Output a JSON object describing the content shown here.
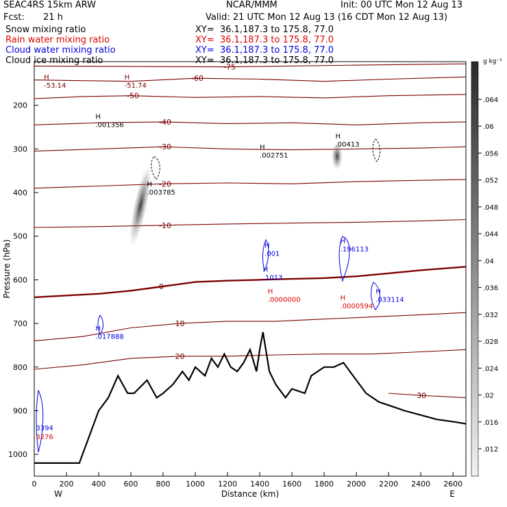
{
  "header": {
    "model": "SEAC4RS 15km ARW",
    "center": "NCAR/MMM",
    "init": "Init: 00 UTC Mon 12 Aug 13",
    "fcst_label": "Fcst:",
    "fcst_value": "21 h",
    "valid": "Valid: 21 UTC Mon 12 Aug 13 (16 CDT Mon 12 Aug 13)"
  },
  "fields": [
    {
      "name": "Snow mixing ratio",
      "xy": "XY=  36.1,187.3 to 175.8, 77.0",
      "color": "#000000"
    },
    {
      "name": "Rain water mixing ratio",
      "xy": "XY=  36.1,187.3 to 175.8, 77.0",
      "color": "#dd0000"
    },
    {
      "name": "Cloud water mixing ratio",
      "xy": "XY=  36.1,187.3 to 175.8, 77.0",
      "color": "#0000dd"
    },
    {
      "name": "Cloud ice mixing ratio",
      "xy": "XY=  36.1,187.3 to 175.8, 77.0",
      "color": "#000000"
    }
  ],
  "colorbar": {
    "unit": "g kg⁻¹",
    "ticks": [
      ".064",
      ".06",
      ".056",
      ".052",
      ".048",
      ".044",
      ".04",
      ".036",
      ".032",
      ".028",
      ".024",
      ".02",
      ".016",
      ".012"
    ]
  },
  "chart_data": {
    "type": "cross-section",
    "xlabel": "Distance (km)",
    "ylabel": "Pressure (hPa)",
    "x_ticks": [
      "0",
      "200",
      "400",
      "600",
      "800",
      "1000",
      "1200",
      "1400",
      "1600",
      "1800",
      "2000",
      "2200",
      "2400",
      "2600"
    ],
    "y_ticks": [
      "200",
      "300",
      "400",
      "500",
      "600",
      "700",
      "800",
      "900",
      "1000"
    ],
    "xlim": [
      0,
      2680
    ],
    "ylim": [
      1050,
      100
    ],
    "left_end": "W",
    "right_end": "E",
    "temperature_contours": [
      {
        "label": "-75",
        "p": 112,
        "points": [
          [
            0,
            110
          ],
          [
            1200,
            112
          ],
          [
            2000,
            108
          ],
          [
            2680,
            105
          ]
        ]
      },
      {
        "label": "-60",
        "p": 140,
        "points": [
          [
            0,
            142
          ],
          [
            600,
            145
          ],
          [
            1000,
            138
          ],
          [
            1400,
            140
          ],
          [
            1800,
            145
          ],
          [
            2200,
            140
          ],
          [
            2680,
            135
          ]
        ]
      },
      {
        "label": "-50",
        "p": 180,
        "points": [
          [
            0,
            185
          ],
          [
            300,
            180
          ],
          [
            600,
            178
          ],
          [
            1000,
            182
          ],
          [
            1400,
            180
          ],
          [
            1800,
            183
          ],
          [
            2200,
            178
          ],
          [
            2680,
            175
          ]
        ]
      },
      {
        "label": "-40",
        "p": 240,
        "points": [
          [
            0,
            245
          ],
          [
            400,
            240
          ],
          [
            800,
            238
          ],
          [
            1200,
            242
          ],
          [
            1600,
            240
          ],
          [
            2000,
            245
          ],
          [
            2400,
            240
          ],
          [
            2680,
            238
          ]
        ]
      },
      {
        "label": "-30",
        "p": 300,
        "points": [
          [
            0,
            305
          ],
          [
            400,
            300
          ],
          [
            800,
            295
          ],
          [
            1200,
            300
          ],
          [
            1600,
            302
          ],
          [
            2000,
            300
          ],
          [
            2400,
            298
          ],
          [
            2680,
            295
          ]
        ]
      },
      {
        "label": "-20",
        "p": 380,
        "points": [
          [
            0,
            390
          ],
          [
            400,
            385
          ],
          [
            800,
            380
          ],
          [
            1200,
            378
          ],
          [
            1600,
            380
          ],
          [
            2000,
            375
          ],
          [
            2400,
            372
          ],
          [
            2680,
            370
          ]
        ]
      },
      {
        "label": "-10",
        "p": 470,
        "points": [
          [
            0,
            480
          ],
          [
            400,
            478
          ],
          [
            800,
            475
          ],
          [
            1200,
            472
          ],
          [
            1600,
            470
          ],
          [
            2000,
            468
          ],
          [
            2400,
            465
          ],
          [
            2680,
            462
          ]
        ]
      },
      {
        "label": "0",
        "p": 600,
        "points": [
          [
            0,
            640
          ],
          [
            200,
            636
          ],
          [
            400,
            632
          ],
          [
            600,
            625
          ],
          [
            800,
            615
          ],
          [
            1000,
            605
          ],
          [
            1200,
            602
          ],
          [
            1400,
            600
          ],
          [
            1600,
            598
          ],
          [
            1800,
            596
          ],
          [
            2000,
            592
          ],
          [
            2200,
            585
          ],
          [
            2400,
            578
          ],
          [
            2680,
            570
          ]
        ]
      },
      {
        "label": "10",
        "p": 705,
        "points": [
          [
            0,
            740
          ],
          [
            300,
            730
          ],
          [
            600,
            710
          ],
          [
            900,
            700
          ],
          [
            1200,
            695
          ],
          [
            1500,
            695
          ],
          [
            1800,
            690
          ],
          [
            2100,
            685
          ],
          [
            2400,
            680
          ],
          [
            2680,
            675
          ]
        ]
      },
      {
        "label": "20",
        "p": 790,
        "points": [
          [
            0,
            805
          ],
          [
            300,
            795
          ],
          [
            600,
            780
          ],
          [
            900,
            775
          ],
          [
            1200,
            775
          ],
          [
            1500,
            772
          ],
          [
            1800,
            770
          ],
          [
            2100,
            770
          ],
          [
            2400,
            765
          ],
          [
            2680,
            760
          ]
        ]
      },
      {
        "label": "30",
        "p": 880,
        "points": [
          [
            2200,
            860
          ],
          [
            2400,
            865
          ],
          [
            2680,
            870
          ]
        ]
      }
    ],
    "maxima": [
      {
        "label": "H",
        "value": "-53.14",
        "x": 60,
        "p": 160,
        "field": "temperature"
      },
      {
        "label": "H",
        "value": "-51.74",
        "x": 560,
        "p": 160,
        "field": "temperature"
      },
      {
        "label": "H",
        "value": ".001356",
        "x": 380,
        "p": 250,
        "field": "snow"
      },
      {
        "label": "H",
        "value": ".002751",
        "x": 1400,
        "p": 320,
        "field": "snow"
      },
      {
        "label": "H",
        "value": ".00413",
        "x": 1870,
        "p": 295,
        "field": "snow"
      },
      {
        "label": "H",
        "value": ".003785",
        "x": 700,
        "p": 405,
        "field": "snow"
      },
      {
        "label": "H",
        "value": ".001",
        "x": 1430,
        "p": 545,
        "field": "cloud water"
      },
      {
        "label": "H",
        "value": ".196113",
        "x": 1900,
        "p": 535,
        "field": "cloud water"
      },
      {
        "label": "H",
        "value": ".1013",
        "x": 1420,
        "p": 600,
        "field": "cloud water"
      },
      {
        "label": "H",
        "value": ".0000000",
        "x": 1450,
        "p": 650,
        "field": "rain water"
      },
      {
        "label": "H",
        "value": ".0000594",
        "x": 1900,
        "p": 665,
        "field": "rain water"
      },
      {
        "label": "H",
        "value": ".033114",
        "x": 2120,
        "p": 650,
        "field": "cloud water"
      },
      {
        "label": "H",
        "value": ".017888",
        "x": 380,
        "p": 735,
        "field": "cloud water"
      },
      {
        "label": "",
        "value": "3394",
        "x": 10,
        "p": 945,
        "field": "cloud water"
      },
      {
        "label": "",
        "value": "3276",
        "x": 10,
        "p": 965,
        "field": "rain water"
      }
    ],
    "terrain": [
      [
        0,
        1020
      ],
      [
        280,
        1020
      ],
      [
        320,
        980
      ],
      [
        400,
        900
      ],
      [
        460,
        870
      ],
      [
        520,
        820
      ],
      [
        580,
        860
      ],
      [
        620,
        860
      ],
      [
        700,
        830
      ],
      [
        760,
        870
      ],
      [
        800,
        860
      ],
      [
        860,
        840
      ],
      [
        920,
        810
      ],
      [
        960,
        830
      ],
      [
        1000,
        800
      ],
      [
        1060,
        820
      ],
      [
        1100,
        780
      ],
      [
        1140,
        800
      ],
      [
        1180,
        770
      ],
      [
        1220,
        800
      ],
      [
        1260,
        810
      ],
      [
        1300,
        790
      ],
      [
        1340,
        760
      ],
      [
        1380,
        810
      ],
      [
        1400,
        760
      ],
      [
        1420,
        720
      ],
      [
        1460,
        810
      ],
      [
        1500,
        840
      ],
      [
        1560,
        870
      ],
      [
        1600,
        850
      ],
      [
        1680,
        860
      ],
      [
        1720,
        820
      ],
      [
        1800,
        800
      ],
      [
        1860,
        800
      ],
      [
        1920,
        790
      ],
      [
        1980,
        820
      ],
      [
        2060,
        860
      ],
      [
        2140,
        880
      ],
      [
        2220,
        890
      ],
      [
        2300,
        900
      ],
      [
        2400,
        910
      ],
      [
        2500,
        920
      ],
      [
        2600,
        925
      ],
      [
        2680,
        930
      ]
    ]
  }
}
